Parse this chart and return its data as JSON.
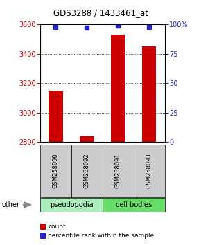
{
  "title": "GDS3288 / 1433461_at",
  "samples": [
    "GSM258090",
    "GSM258092",
    "GSM258091",
    "GSM258093"
  ],
  "counts": [
    3150,
    2840,
    3530,
    3450
  ],
  "percentile_ranks": [
    98,
    97,
    99,
    98
  ],
  "ylim_left": [
    2800,
    3600
  ],
  "ylim_right": [
    0,
    100
  ],
  "yticks_left": [
    2800,
    3000,
    3200,
    3400,
    3600
  ],
  "yticks_right": [
    0,
    25,
    50,
    75,
    100
  ],
  "bar_color": "#cc0000",
  "dot_color": "#2222cc",
  "group_configs": [
    {
      "label": "pseudopodia",
      "color": "#aaeebb",
      "start": 0,
      "end": 2
    },
    {
      "label": "cell bodies",
      "color": "#66dd66",
      "start": 2,
      "end": 4
    }
  ],
  "other_label": "other",
  "legend_count_label": "count",
  "legend_pct_label": "percentile rank within the sample",
  "tick_label_color_left": "#cc0000",
  "tick_label_color_right": "#2222cc",
  "sample_box_color": "#cccccc"
}
